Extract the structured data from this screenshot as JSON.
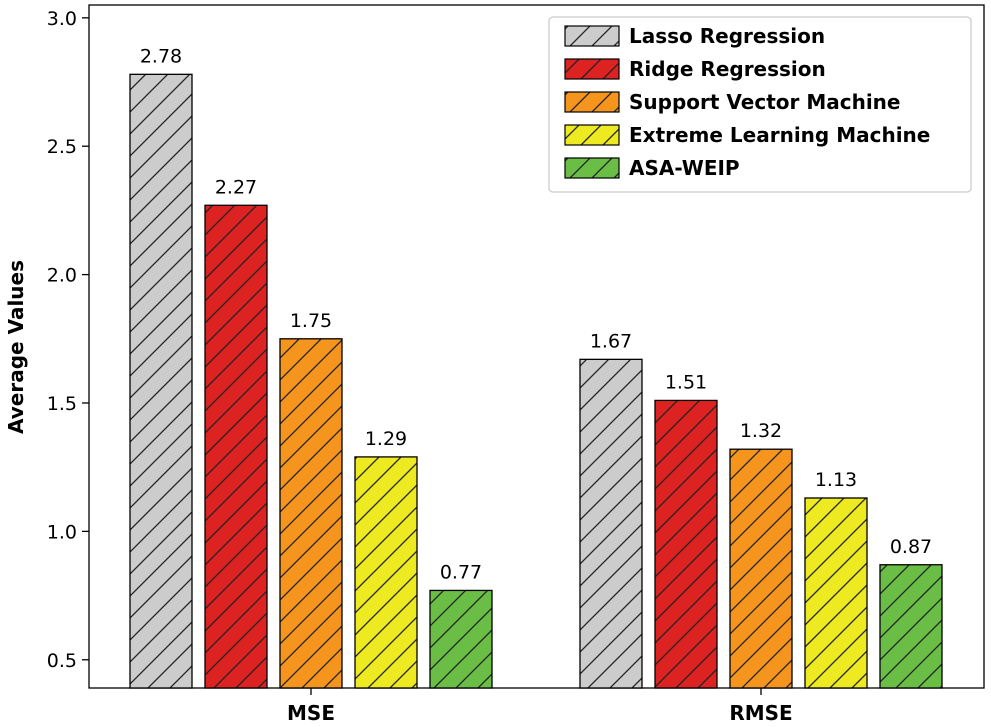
{
  "chart_data": {
    "type": "bar",
    "title": "",
    "xlabel": "",
    "ylabel": "Average Values",
    "ylim": [
      0.39,
      3.05
    ],
    "yticks": [
      "0.5",
      "1.0",
      "1.5",
      "2.0",
      "2.5",
      "3.0"
    ],
    "categories": [
      "MSE",
      "RMSE"
    ],
    "series": [
      {
        "name": "Lasso Regression",
        "color": "#cccccc",
        "values": [
          2.78,
          1.67
        ],
        "value_labels": [
          "2.78",
          "1.67"
        ]
      },
      {
        "name": "Ridge Regression",
        "color": "#dd2222",
        "values": [
          2.27,
          1.51
        ],
        "value_labels": [
          "2.27",
          "1.51"
        ]
      },
      {
        "name": "Support Vector Machine",
        "color": "#f5951d",
        "values": [
          1.75,
          1.32
        ],
        "value_labels": [
          "1.75",
          "1.32"
        ]
      },
      {
        "name": "Extreme Learning Machine",
        "color": "#eeea22",
        "values": [
          1.29,
          1.13
        ],
        "value_labels": [
          "1.29",
          "1.13"
        ]
      },
      {
        "name": "ASA-WEIP",
        "color": "#6abd45",
        "values": [
          0.77,
          0.87
        ],
        "value_labels": [
          "0.77",
          "0.87"
        ]
      }
    ],
    "hatch": "diagonal",
    "legend_position": "top-right",
    "grid": false
  }
}
